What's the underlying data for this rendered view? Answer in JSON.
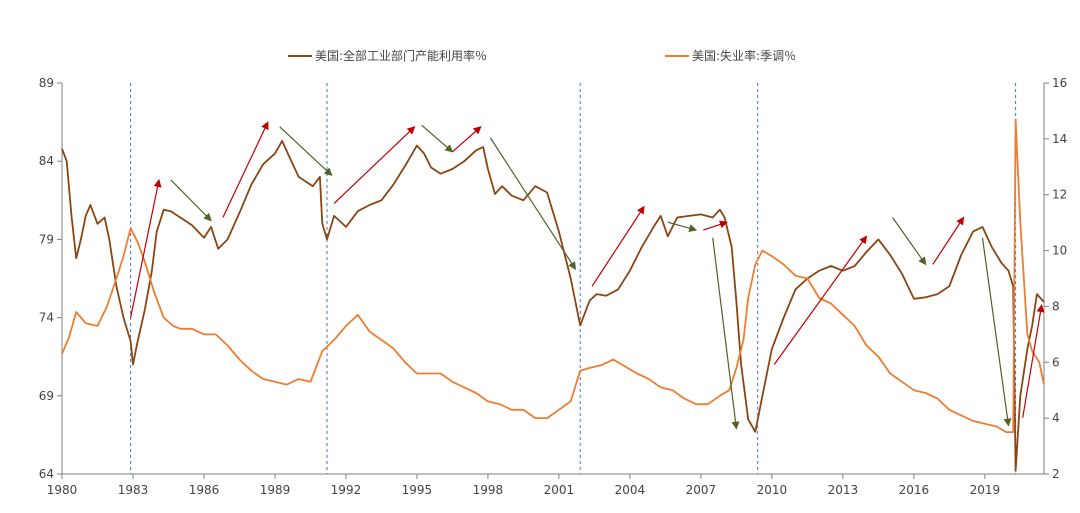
{
  "chart_data": {
    "type": "line",
    "title": "",
    "xlabel": "",
    "ylabel_left": "",
    "ylabel_right": "",
    "legend_position": "top-center",
    "grid": false,
    "x_range": [
      1980,
      2021.5
    ],
    "y_left_range": [
      64,
      89
    ],
    "y_right_range": [
      2,
      16
    ],
    "x_ticks": [
      "1980",
      "1983",
      "1986",
      "1989",
      "1992",
      "1995",
      "1998",
      "2001",
      "2004",
      "2007",
      "2010",
      "2013",
      "2016",
      "2019"
    ],
    "y_left_ticks": [
      "64",
      "69",
      "74",
      "79",
      "84",
      "89"
    ],
    "y_right_ticks": [
      "2",
      "4",
      "6",
      "8",
      "10",
      "12",
      "14",
      "16"
    ],
    "series": [
      {
        "name": "美国:全部工业部门产能利用率％",
        "axis": "left",
        "color": "#8B4513",
        "points": [
          [
            1980.0,
            84.8
          ],
          [
            1980.2,
            84.0
          ],
          [
            1980.4,
            80.5
          ],
          [
            1980.6,
            77.8
          ],
          [
            1980.8,
            79.0
          ],
          [
            1981.0,
            80.5
          ],
          [
            1981.2,
            81.2
          ],
          [
            1981.5,
            80.0
          ],
          [
            1981.8,
            80.4
          ],
          [
            1982.0,
            79.0
          ],
          [
            1982.3,
            76.0
          ],
          [
            1982.6,
            74.0
          ],
          [
            1982.9,
            72.5
          ],
          [
            1983.0,
            71.0
          ],
          [
            1983.2,
            72.5
          ],
          [
            1983.5,
            74.5
          ],
          [
            1983.8,
            77.0
          ],
          [
            1984.0,
            79.5
          ],
          [
            1984.3,
            80.9
          ],
          [
            1984.6,
            80.8
          ],
          [
            1985.0,
            80.4
          ],
          [
            1985.5,
            79.9
          ],
          [
            1986.0,
            79.1
          ],
          [
            1986.3,
            79.8
          ],
          [
            1986.6,
            78.4
          ],
          [
            1987.0,
            79.0
          ],
          [
            1987.5,
            80.7
          ],
          [
            1988.0,
            82.5
          ],
          [
            1988.5,
            83.8
          ],
          [
            1989.0,
            84.5
          ],
          [
            1989.3,
            85.3
          ],
          [
            1989.6,
            84.3
          ],
          [
            1990.0,
            83.0
          ],
          [
            1990.3,
            82.7
          ],
          [
            1990.6,
            82.4
          ],
          [
            1990.9,
            83.0
          ],
          [
            1991.0,
            80.0
          ],
          [
            1991.2,
            79.0
          ],
          [
            1991.5,
            80.5
          ],
          [
            1992.0,
            79.8
          ],
          [
            1992.5,
            80.8
          ],
          [
            1993.0,
            81.2
          ],
          [
            1993.5,
            81.5
          ],
          [
            1994.0,
            82.5
          ],
          [
            1994.5,
            83.7
          ],
          [
            1995.0,
            85.0
          ],
          [
            1995.3,
            84.5
          ],
          [
            1995.6,
            83.6
          ],
          [
            1996.0,
            83.2
          ],
          [
            1996.5,
            83.5
          ],
          [
            1997.0,
            84.0
          ],
          [
            1997.5,
            84.7
          ],
          [
            1997.8,
            84.9
          ],
          [
            1998.0,
            83.5
          ],
          [
            1998.3,
            81.9
          ],
          [
            1998.6,
            82.4
          ],
          [
            1999.0,
            81.8
          ],
          [
            1999.5,
            81.5
          ],
          [
            2000.0,
            82.4
          ],
          [
            2000.5,
            82.0
          ],
          [
            2001.0,
            79.5
          ],
          [
            2001.5,
            76.5
          ],
          [
            2001.9,
            73.5
          ],
          [
            2002.3,
            75.1
          ],
          [
            2002.6,
            75.5
          ],
          [
            2003.0,
            75.4
          ],
          [
            2003.5,
            75.8
          ],
          [
            2004.0,
            77.0
          ],
          [
            2004.5,
            78.5
          ],
          [
            2005.0,
            79.8
          ],
          [
            2005.3,
            80.5
          ],
          [
            2005.6,
            79.2
          ],
          [
            2006.0,
            80.4
          ],
          [
            2006.5,
            80.5
          ],
          [
            2007.0,
            80.6
          ],
          [
            2007.5,
            80.4
          ],
          [
            2007.8,
            80.9
          ],
          [
            2008.0,
            80.4
          ],
          [
            2008.3,
            78.5
          ],
          [
            2008.5,
            75.0
          ],
          [
            2008.7,
            71.0
          ],
          [
            2009.0,
            67.5
          ],
          [
            2009.3,
            66.7
          ],
          [
            2009.6,
            69.0
          ],
          [
            2010.0,
            72.0
          ],
          [
            2010.5,
            74.0
          ],
          [
            2011.0,
            75.8
          ],
          [
            2011.5,
            76.5
          ],
          [
            2012.0,
            77.0
          ],
          [
            2012.5,
            77.3
          ],
          [
            2013.0,
            77.0
          ],
          [
            2013.5,
            77.3
          ],
          [
            2014.0,
            78.2
          ],
          [
            2014.5,
            79.0
          ],
          [
            2015.0,
            78.0
          ],
          [
            2015.5,
            76.8
          ],
          [
            2016.0,
            75.2
          ],
          [
            2016.5,
            75.3
          ],
          [
            2017.0,
            75.5
          ],
          [
            2017.5,
            76.0
          ],
          [
            2018.0,
            78.0
          ],
          [
            2018.5,
            79.5
          ],
          [
            2018.9,
            79.8
          ],
          [
            2019.3,
            78.5
          ],
          [
            2019.7,
            77.5
          ],
          [
            2020.0,
            77.0
          ],
          [
            2020.2,
            76.0
          ],
          [
            2020.3,
            64.2
          ],
          [
            2020.5,
            69.0
          ],
          [
            2020.8,
            72.0
          ],
          [
            2021.0,
            73.5
          ],
          [
            2021.2,
            75.5
          ],
          [
            2021.5,
            75.0
          ]
        ]
      },
      {
        "name": "美国:失业率:季调％",
        "axis": "right",
        "color": "#ED7D31",
        "points": [
          [
            1980.0,
            6.3
          ],
          [
            1980.3,
            6.9
          ],
          [
            1980.6,
            7.8
          ],
          [
            1981.0,
            7.4
          ],
          [
            1981.5,
            7.3
          ],
          [
            1981.9,
            8.0
          ],
          [
            1982.3,
            9.0
          ],
          [
            1982.6,
            9.8
          ],
          [
            1982.9,
            10.8
          ],
          [
            1983.2,
            10.3
          ],
          [
            1983.5,
            9.6
          ],
          [
            1983.9,
            8.5
          ],
          [
            1984.3,
            7.6
          ],
          [
            1984.7,
            7.3
          ],
          [
            1985.0,
            7.2
          ],
          [
            1985.5,
            7.2
          ],
          [
            1986.0,
            7.0
          ],
          [
            1986.5,
            7.0
          ],
          [
            1987.0,
            6.6
          ],
          [
            1987.5,
            6.1
          ],
          [
            1988.0,
            5.7
          ],
          [
            1988.5,
            5.4
          ],
          [
            1989.0,
            5.3
          ],
          [
            1989.5,
            5.2
          ],
          [
            1990.0,
            5.4
          ],
          [
            1990.5,
            5.3
          ],
          [
            1991.0,
            6.4
          ],
          [
            1991.5,
            6.8
          ],
          [
            1992.0,
            7.3
          ],
          [
            1992.5,
            7.7
          ],
          [
            1993.0,
            7.1
          ],
          [
            1993.5,
            6.8
          ],
          [
            1994.0,
            6.5
          ],
          [
            1994.5,
            6.0
          ],
          [
            1995.0,
            5.6
          ],
          [
            1995.5,
            5.6
          ],
          [
            1996.0,
            5.6
          ],
          [
            1996.5,
            5.3
          ],
          [
            1997.0,
            5.1
          ],
          [
            1997.5,
            4.9
          ],
          [
            1998.0,
            4.6
          ],
          [
            1998.5,
            4.5
          ],
          [
            1999.0,
            4.3
          ],
          [
            1999.5,
            4.3
          ],
          [
            2000.0,
            4.0
          ],
          [
            2000.5,
            4.0
          ],
          [
            2001.0,
            4.3
          ],
          [
            2001.5,
            4.6
          ],
          [
            2001.9,
            5.7
          ],
          [
            2002.3,
            5.8
          ],
          [
            2002.8,
            5.9
          ],
          [
            2003.3,
            6.1
          ],
          [
            2003.7,
            5.9
          ],
          [
            2004.3,
            5.6
          ],
          [
            2004.8,
            5.4
          ],
          [
            2005.3,
            5.1
          ],
          [
            2005.8,
            5.0
          ],
          [
            2006.3,
            4.7
          ],
          [
            2006.8,
            4.5
          ],
          [
            2007.3,
            4.5
          ],
          [
            2007.8,
            4.8
          ],
          [
            2008.2,
            5.0
          ],
          [
            2008.5,
            5.8
          ],
          [
            2008.8,
            6.8
          ],
          [
            2009.0,
            8.3
          ],
          [
            2009.3,
            9.5
          ],
          [
            2009.6,
            10.0
          ],
          [
            2010.0,
            9.8
          ],
          [
            2010.5,
            9.5
          ],
          [
            2011.0,
            9.1
          ],
          [
            2011.5,
            9.0
          ],
          [
            2012.0,
            8.3
          ],
          [
            2012.5,
            8.1
          ],
          [
            2013.0,
            7.7
          ],
          [
            2013.5,
            7.3
          ],
          [
            2014.0,
            6.6
          ],
          [
            2014.5,
            6.2
          ],
          [
            2015.0,
            5.6
          ],
          [
            2015.5,
            5.3
          ],
          [
            2016.0,
            5.0
          ],
          [
            2016.5,
            4.9
          ],
          [
            2017.0,
            4.7
          ],
          [
            2017.5,
            4.3
          ],
          [
            2018.0,
            4.1
          ],
          [
            2018.5,
            3.9
          ],
          [
            2019.0,
            3.8
          ],
          [
            2019.5,
            3.7
          ],
          [
            2019.9,
            3.5
          ],
          [
            2020.2,
            3.5
          ],
          [
            2020.3,
            14.7
          ],
          [
            2020.5,
            11.0
          ],
          [
            2020.8,
            7.0
          ],
          [
            2021.0,
            6.4
          ],
          [
            2021.3,
            6.0
          ],
          [
            2021.5,
            5.2
          ]
        ]
      }
    ],
    "recession_markers_x": [
      1982.9,
      1991.2,
      2001.9,
      2009.4,
      2020.3
    ],
    "annotation_arrows": [
      {
        "trend": "up",
        "color": "#C00000",
        "from": [
          1982.9,
          74.0
        ],
        "to": [
          1984.1,
          82.8
        ]
      },
      {
        "trend": "down",
        "color": "#4F6228",
        "from": [
          1984.6,
          82.8
        ],
        "to": [
          1986.3,
          80.2
        ]
      },
      {
        "trend": "up",
        "color": "#C00000",
        "from": [
          1986.8,
          80.4
        ],
        "to": [
          1988.7,
          86.5
        ]
      },
      {
        "trend": "down",
        "color": "#4F6228",
        "from": [
          1989.2,
          86.2
        ],
        "to": [
          1991.4,
          83.1
        ]
      },
      {
        "trend": "up",
        "color": "#C00000",
        "from": [
          1991.5,
          81.3
        ],
        "to": [
          1994.9,
          86.2
        ]
      },
      {
        "trend": "down",
        "color": "#4F6228",
        "from": [
          1995.2,
          86.3
        ],
        "to": [
          1996.5,
          84.6
        ]
      },
      {
        "trend": "up",
        "color": "#C00000",
        "from": [
          1996.5,
          84.6
        ],
        "to": [
          1997.7,
          86.2
        ]
      },
      {
        "trend": "down",
        "color": "#4F6228",
        "from": [
          1998.1,
          85.5
        ],
        "to": [
          2001.7,
          77.1
        ]
      },
      {
        "trend": "up",
        "color": "#C00000",
        "from": [
          2002.4,
          76.0
        ],
        "to": [
          2004.6,
          81.1
        ]
      },
      {
        "trend": "down",
        "color": "#4F6228",
        "from": [
          2005.6,
          80.1
        ],
        "to": [
          2006.8,
          79.6
        ]
      },
      {
        "trend": "up",
        "color": "#C00000",
        "from": [
          2007.1,
          79.6
        ],
        "to": [
          2008.1,
          80.1
        ]
      },
      {
        "trend": "down",
        "color": "#4F6228",
        "from": [
          2007.5,
          79.1
        ],
        "to": [
          2008.5,
          66.9
        ]
      },
      {
        "trend": "up",
        "color": "#C00000",
        "from": [
          2010.1,
          71.0
        ],
        "to": [
          2014.0,
          79.2
        ]
      },
      {
        "trend": "down",
        "color": "#4F6228",
        "from": [
          2015.1,
          80.4
        ],
        "to": [
          2016.5,
          77.4
        ]
      },
      {
        "trend": "up",
        "color": "#C00000",
        "from": [
          2016.8,
          77.4
        ],
        "to": [
          2018.1,
          80.4
        ]
      },
      {
        "trend": "down",
        "color": "#4F6228",
        "from": [
          2018.9,
          79.1
        ],
        "to": [
          2020.0,
          67.1
        ]
      },
      {
        "trend": "up",
        "color": "#C00000",
        "from": [
          2020.6,
          67.6
        ],
        "to": [
          2021.4,
          74.8
        ]
      }
    ],
    "colors": {
      "axis": "#7F7F7F",
      "recession_line": "#4472C4",
      "up_arrow": "#C00000",
      "down_arrow": "#4F6228"
    }
  }
}
